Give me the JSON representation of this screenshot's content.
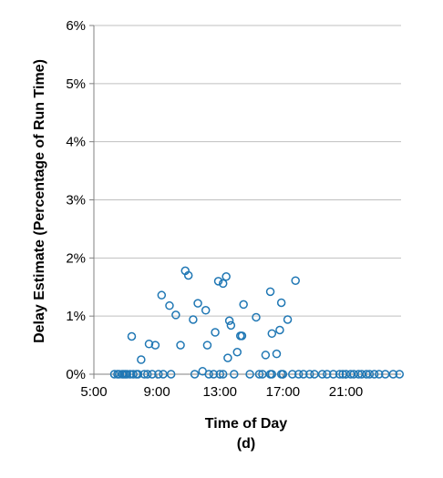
{
  "chart_data": {
    "type": "scatter",
    "xlabel": "Time of Day",
    "sublabel": "(d)",
    "ylabel": "Delay Estimate (Percentage of Run Time)",
    "xlim": [
      5,
      24.5
    ],
    "ylim": [
      0,
      6
    ],
    "x_ticks": [
      {
        "value": 5,
        "label": "5:00"
      },
      {
        "value": 9,
        "label": "9:00"
      },
      {
        "value": 13,
        "label": "13:00"
      },
      {
        "value": 17,
        "label": "17:00"
      },
      {
        "value": 21,
        "label": "21:00"
      }
    ],
    "y_ticks": [
      {
        "value": 0,
        "label": "0%"
      },
      {
        "value": 1,
        "label": "1%"
      },
      {
        "value": 2,
        "label": "2%"
      },
      {
        "value": 3,
        "label": "3%"
      },
      {
        "value": 4,
        "label": "4%"
      },
      {
        "value": 5,
        "label": "5%"
      },
      {
        "value": 6,
        "label": "6%"
      }
    ],
    "grid": "horizontal",
    "marker": "open-circle",
    "series_color": "#1f77b4",
    "points": [
      [
        6.3,
        0
      ],
      [
        6.5,
        0
      ],
      [
        6.6,
        0
      ],
      [
        6.8,
        0
      ],
      [
        6.9,
        0
      ],
      [
        7.0,
        0
      ],
      [
        7.1,
        0
      ],
      [
        7.3,
        0
      ],
      [
        7.5,
        0
      ],
      [
        7.7,
        0
      ],
      [
        7.8,
        0
      ],
      [
        8.2,
        0
      ],
      [
        8.4,
        0
      ],
      [
        8.7,
        0
      ],
      [
        9.1,
        0
      ],
      [
        9.4,
        0
      ],
      [
        9.9,
        0
      ],
      [
        11.4,
        0
      ],
      [
        12.3,
        0
      ],
      [
        12.6,
        0
      ],
      [
        13.0,
        0
      ],
      [
        13.2,
        0
      ],
      [
        13.9,
        0
      ],
      [
        14.9,
        0
      ],
      [
        15.5,
        0
      ],
      [
        15.7,
        0
      ],
      [
        16.2,
        0
      ],
      [
        16.3,
        0
      ],
      [
        16.9,
        0
      ],
      [
        17.0,
        0
      ],
      [
        17.6,
        0
      ],
      [
        18.0,
        0
      ],
      [
        18.3,
        0
      ],
      [
        18.7,
        0
      ],
      [
        19.0,
        0
      ],
      [
        19.5,
        0
      ],
      [
        19.8,
        0
      ],
      [
        20.2,
        0
      ],
      [
        20.6,
        0
      ],
      [
        20.8,
        0
      ],
      [
        21.0,
        0
      ],
      [
        21.3,
        0
      ],
      [
        21.5,
        0
      ],
      [
        21.8,
        0
      ],
      [
        22.0,
        0
      ],
      [
        22.3,
        0
      ],
      [
        22.5,
        0
      ],
      [
        22.8,
        0
      ],
      [
        23.1,
        0
      ],
      [
        23.5,
        0
      ],
      [
        24.0,
        0
      ],
      [
        24.4,
        0
      ],
      [
        7.4,
        0.65
      ],
      [
        8.0,
        0.25
      ],
      [
        8.5,
        0.52
      ],
      [
        8.9,
        0.5
      ],
      [
        9.3,
        1.36
      ],
      [
        9.8,
        1.18
      ],
      [
        10.2,
        1.02
      ],
      [
        10.5,
        0.5
      ],
      [
        10.8,
        1.78
      ],
      [
        11.0,
        1.7
      ],
      [
        11.3,
        0.94
      ],
      [
        11.6,
        1.22
      ],
      [
        11.9,
        0.05
      ],
      [
        12.1,
        1.1
      ],
      [
        12.2,
        0.5
      ],
      [
        12.7,
        0.72
      ],
      [
        12.9,
        1.6
      ],
      [
        13.2,
        1.56
      ],
      [
        13.4,
        1.68
      ],
      [
        13.5,
        0.28
      ],
      [
        13.6,
        0.92
      ],
      [
        13.7,
        0.84
      ],
      [
        14.1,
        0.38
      ],
      [
        14.3,
        0.66
      ],
      [
        14.4,
        0.66
      ],
      [
        14.5,
        1.2
      ],
      [
        15.3,
        0.98
      ],
      [
        15.9,
        0.33
      ],
      [
        16.2,
        1.42
      ],
      [
        16.3,
        0.7
      ],
      [
        16.6,
        0.35
      ],
      [
        16.8,
        0.76
      ],
      [
        16.9,
        1.23
      ],
      [
        17.3,
        0.94
      ],
      [
        17.8,
        1.61
      ]
    ]
  }
}
